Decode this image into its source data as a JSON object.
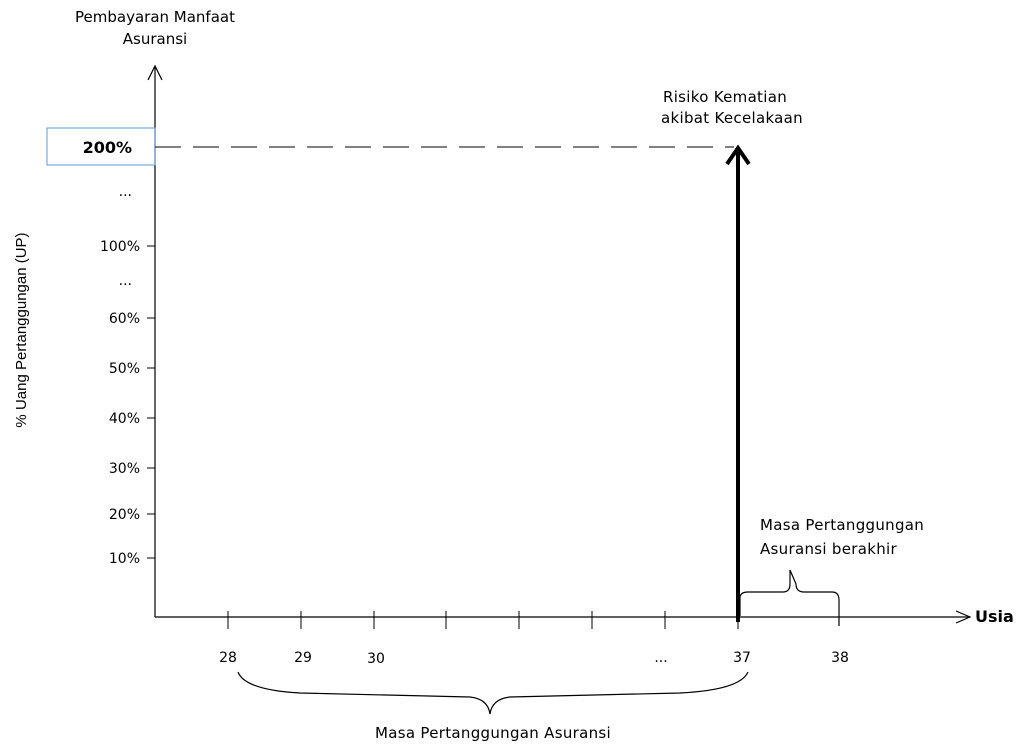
{
  "y_axis_title": [
    "Pembayaran Manfaat",
    "Asuransi"
  ],
  "y_axis_label": "% Uang Pertanggungan (UP)",
  "x_axis_label": "Usia",
  "y_ticks": [
    "200%",
    "...",
    "100%",
    "...",
    "60%",
    "50%",
    "40%",
    "30%",
    "20%",
    "10%"
  ],
  "x_ticks": [
    "28",
    "29",
    "30",
    "...",
    "37",
    "38"
  ],
  "event_label": [
    "Risiko Kematian",
    "akibat Kecelakaan"
  ],
  "period_label": "Masa Pertanggungan Asuransi",
  "end_label": [
    "Masa Pertanggungan",
    "Asuransi berakhir"
  ],
  "chart_data": {
    "type": "diagram",
    "highlight_value": "200%",
    "event_age": 37,
    "coverage_period": [
      "28",
      "37"
    ],
    "coverage_end": [
      "37",
      "38"
    ]
  },
  "colors": {
    "highlight_box": "#5b9bd5",
    "axis": "#000000"
  }
}
